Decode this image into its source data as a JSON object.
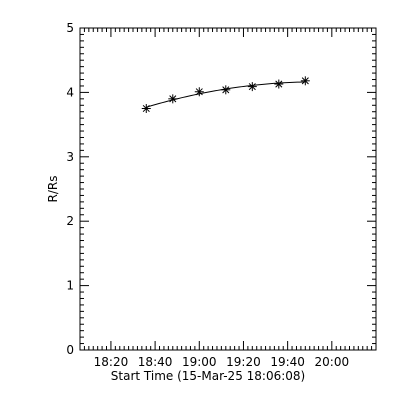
{
  "chart_data": {
    "type": "scatter",
    "xlabel": "Start Time (15-Mar-25 18:06:08)",
    "ylabel": "R/Rs",
    "xlim": [
      "18:06",
      "20:20"
    ],
    "ylim": [
      0,
      5
    ],
    "x_ticks": [
      "18:20",
      "18:40",
      "19:00",
      "19:20",
      "19:40",
      "20:00"
    ],
    "y_ticks": [
      "0",
      "1",
      "2",
      "3",
      "4",
      "5"
    ],
    "grid": false,
    "series": [
      {
        "marker": "asterisk",
        "fit_line": true,
        "x": [
          "18:36",
          "18:48",
          "19:00",
          "19:12",
          "19:24",
          "19:36",
          "19:48"
        ],
        "y": [
          3.75,
          3.9,
          4.01,
          4.04,
          4.09,
          4.13,
          4.18
        ]
      }
    ],
    "colors": {
      "foreground": "#000000",
      "background": "#ffffff"
    }
  }
}
